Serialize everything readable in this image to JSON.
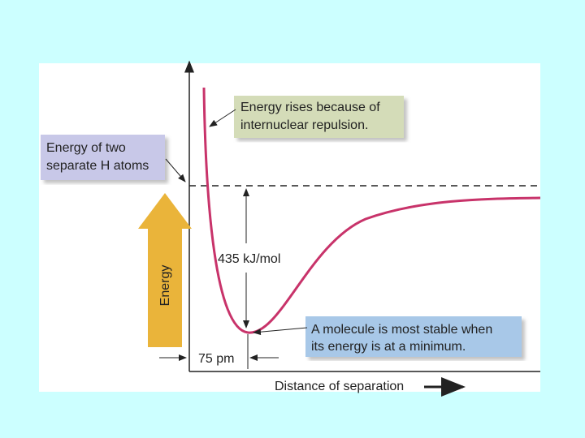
{
  "annotations": {
    "repulsion": [
      "Energy rises because of",
      "internuclear repulsion."
    ],
    "separate_atoms": [
      "Energy of two",
      "separate H atoms"
    ],
    "minimum": [
      "A molecule is most stable when",
      "its energy is at a minimum."
    ],
    "bond_energy": "435 kJ/mol",
    "bond_length": "75 pm"
  },
  "axes": {
    "y_label": "Energy",
    "x_label": "Distance of separation"
  }
}
